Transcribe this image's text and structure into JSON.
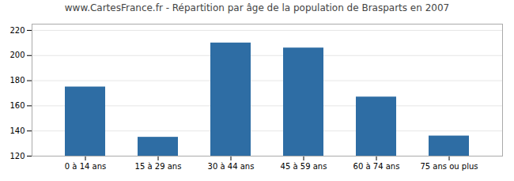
{
  "chart_data": {
    "type": "bar",
    "title": "www.CartesFrance.fr - Répartition par âge de la population de Brasparts en 2007",
    "categories": [
      "0 à 14 ans",
      "15 à 29 ans",
      "30 à 44 ans",
      "45 à 59 ans",
      "60 à 74 ans",
      "75 ans ou plus"
    ],
    "values": [
      175,
      135,
      210,
      206,
      167,
      136
    ],
    "color": "#2e6da4",
    "ylim": [
      120,
      225
    ],
    "yticks": [
      120,
      140,
      160,
      180,
      200,
      220
    ],
    "grid": true
  }
}
